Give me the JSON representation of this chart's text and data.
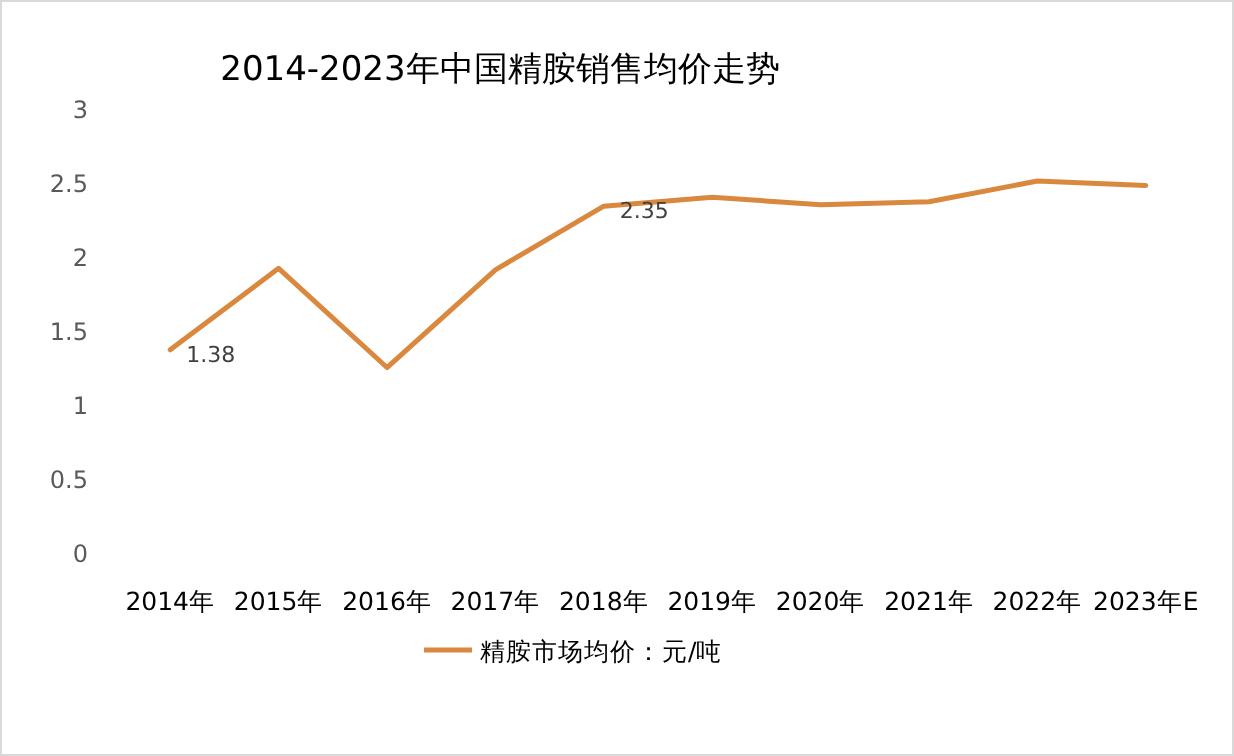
{
  "chart_data": {
    "type": "line",
    "title": "2014-2023年中国精胺销售均价走势",
    "categories": [
      "2014年",
      "2015年",
      "2016年",
      "2017年",
      "2018年",
      "2019年",
      "2020年",
      "2021年",
      "2022年",
      "2023年E"
    ],
    "series": [
      {
        "name": "精胺市场均价：元/吨",
        "color": "#d9883e",
        "values": [
          1.38,
          1.93,
          1.26,
          1.92,
          2.35,
          2.41,
          2.36,
          2.38,
          2.52,
          2.49
        ],
        "value_labels": [
          "1.38",
          null,
          null,
          null,
          "2.35",
          null,
          null,
          null,
          null,
          null
        ]
      }
    ],
    "ylim": [
      0,
      3
    ],
    "yticks": [
      0,
      0.5,
      1,
      1.5,
      2,
      2.5,
      3
    ],
    "legend": "bottom"
  }
}
